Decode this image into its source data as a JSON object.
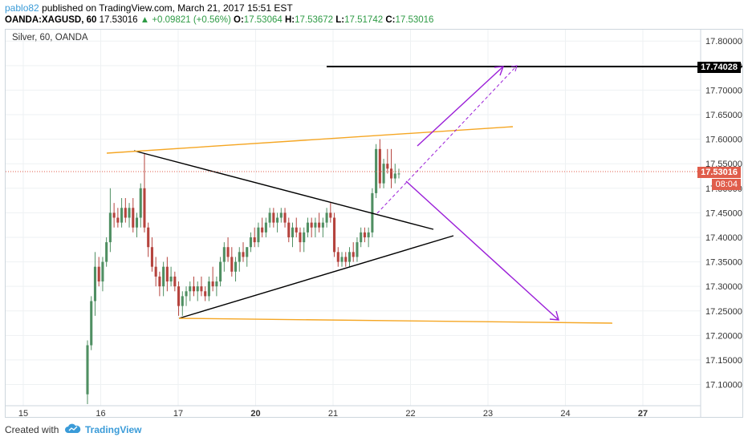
{
  "header": {
    "author": "pablo82",
    "published_text": "published on TradingView.com, March 21, 2017 15:51 EST",
    "symbol": "OANDA:XAGUSD, 60",
    "last": "17.53016",
    "change": "▲ +0.09821 (+0.56%)",
    "o_label": "O:",
    "o_value": "17.53064",
    "h_label": "H:",
    "h_value": "17.53672",
    "l_label": "L:",
    "l_value": "17.51742",
    "c_label": "C:",
    "c_value": "17.53016"
  },
  "chart": {
    "label": "Silver, 60, OANDA",
    "resistance_tag": "17.74028",
    "last_tag": "17.53016",
    "time_tag": "08:04"
  },
  "footer": {
    "created_with": "Created with",
    "brand": "TradingView"
  },
  "colors": {
    "bull": "#4f8f62",
    "bear": "#b5433d",
    "orange_line": "#f5a623",
    "purple_arrow": "#9b1fd8",
    "resistance": "#000000",
    "last_price": "#e05d4b"
  },
  "chart_data": {
    "type": "candlestick",
    "symbol": "OANDA:XAGUSD",
    "interval": "60",
    "x_ticks": [
      "15",
      "16",
      "17",
      "20",
      "21",
      "22",
      "23",
      "24",
      "27"
    ],
    "y_ticks": [
      "17.10000",
      "17.15000",
      "17.20000",
      "17.25000",
      "17.30000",
      "17.35000",
      "17.40000",
      "17.45000",
      "17.50000",
      "17.55000",
      "17.60000",
      "17.65000",
      "17.70000",
      "17.75000",
      "17.80000"
    ],
    "ylim": [
      17.06,
      17.82
    ],
    "levels": {
      "resistance": 17.74028,
      "last": 17.53016
    },
    "candles": [
      {
        "o": 17.08,
        "h": 17.19,
        "l": 17.06,
        "c": 17.18
      },
      {
        "o": 17.18,
        "h": 17.28,
        "l": 17.17,
        "c": 17.27
      },
      {
        "o": 17.27,
        "h": 17.37,
        "l": 17.24,
        "c": 17.34
      },
      {
        "o": 17.34,
        "h": 17.36,
        "l": 17.3,
        "c": 17.31
      },
      {
        "o": 17.31,
        "h": 17.36,
        "l": 17.29,
        "c": 17.35
      },
      {
        "o": 17.35,
        "h": 17.4,
        "l": 17.34,
        "c": 17.39
      },
      {
        "o": 17.39,
        "h": 17.5,
        "l": 17.37,
        "c": 17.45
      },
      {
        "o": 17.45,
        "h": 17.47,
        "l": 17.42,
        "c": 17.44
      },
      {
        "o": 17.44,
        "h": 17.46,
        "l": 17.42,
        "c": 17.43
      },
      {
        "o": 17.43,
        "h": 17.48,
        "l": 17.42,
        "c": 17.46
      },
      {
        "o": 17.46,
        "h": 17.48,
        "l": 17.43,
        "c": 17.44
      },
      {
        "o": 17.44,
        "h": 17.47,
        "l": 17.42,
        "c": 17.46
      },
      {
        "o": 17.46,
        "h": 17.48,
        "l": 17.41,
        "c": 17.42
      },
      {
        "o": 17.42,
        "h": 17.45,
        "l": 17.4,
        "c": 17.44
      },
      {
        "o": 17.44,
        "h": 17.51,
        "l": 17.42,
        "c": 17.5
      },
      {
        "o": 17.5,
        "h": 17.57,
        "l": 17.41,
        "c": 17.42
      },
      {
        "o": 17.42,
        "h": 17.43,
        "l": 17.36,
        "c": 17.38
      },
      {
        "o": 17.38,
        "h": 17.4,
        "l": 17.33,
        "c": 17.34
      },
      {
        "o": 17.34,
        "h": 17.36,
        "l": 17.3,
        "c": 17.32
      },
      {
        "o": 17.32,
        "h": 17.33,
        "l": 17.28,
        "c": 17.3
      },
      {
        "o": 17.3,
        "h": 17.35,
        "l": 17.28,
        "c": 17.34
      },
      {
        "o": 17.34,
        "h": 17.36,
        "l": 17.29,
        "c": 17.31
      },
      {
        "o": 17.31,
        "h": 17.34,
        "l": 17.3,
        "c": 17.32
      },
      {
        "o": 17.32,
        "h": 17.33,
        "l": 17.29,
        "c": 17.3
      },
      {
        "o": 17.3,
        "h": 17.31,
        "l": 17.24,
        "c": 17.26
      },
      {
        "o": 17.26,
        "h": 17.29,
        "l": 17.24,
        "c": 17.28
      },
      {
        "o": 17.28,
        "h": 17.3,
        "l": 17.26,
        "c": 17.29
      },
      {
        "o": 17.29,
        "h": 17.31,
        "l": 17.27,
        "c": 17.3
      },
      {
        "o": 17.3,
        "h": 17.32,
        "l": 17.28,
        "c": 17.29
      },
      {
        "o": 17.29,
        "h": 17.31,
        "l": 17.27,
        "c": 17.3
      },
      {
        "o": 17.3,
        "h": 17.32,
        "l": 17.28,
        "c": 17.29
      },
      {
        "o": 17.29,
        "h": 17.3,
        "l": 17.27,
        "c": 17.28
      },
      {
        "o": 17.28,
        "h": 17.32,
        "l": 17.27,
        "c": 17.31
      },
      {
        "o": 17.31,
        "h": 17.34,
        "l": 17.29,
        "c": 17.3
      },
      {
        "o": 17.3,
        "h": 17.32,
        "l": 17.28,
        "c": 17.31
      },
      {
        "o": 17.31,
        "h": 17.36,
        "l": 17.3,
        "c": 17.35
      },
      {
        "o": 17.35,
        "h": 17.39,
        "l": 17.33,
        "c": 17.38
      },
      {
        "o": 17.38,
        "h": 17.4,
        "l": 17.35,
        "c": 17.36
      },
      {
        "o": 17.36,
        "h": 17.38,
        "l": 17.32,
        "c": 17.33
      },
      {
        "o": 17.33,
        "h": 17.36,
        "l": 17.31,
        "c": 17.35
      },
      {
        "o": 17.35,
        "h": 17.38,
        "l": 17.33,
        "c": 17.37
      },
      {
        "o": 17.37,
        "h": 17.39,
        "l": 17.35,
        "c": 17.36
      },
      {
        "o": 17.36,
        "h": 17.38,
        "l": 17.34,
        "c": 17.38
      },
      {
        "o": 17.38,
        "h": 17.41,
        "l": 17.37,
        "c": 17.4
      },
      {
        "o": 17.4,
        "h": 17.42,
        "l": 17.38,
        "c": 17.39
      },
      {
        "o": 17.39,
        "h": 17.43,
        "l": 17.38,
        "c": 17.42
      },
      {
        "o": 17.42,
        "h": 17.44,
        "l": 17.4,
        "c": 17.41
      },
      {
        "o": 17.41,
        "h": 17.44,
        "l": 17.4,
        "c": 17.43
      },
      {
        "o": 17.43,
        "h": 17.46,
        "l": 17.42,
        "c": 17.45
      },
      {
        "o": 17.45,
        "h": 17.46,
        "l": 17.42,
        "c": 17.43
      },
      {
        "o": 17.43,
        "h": 17.45,
        "l": 17.41,
        "c": 17.44
      },
      {
        "o": 17.44,
        "h": 17.46,
        "l": 17.43,
        "c": 17.45
      },
      {
        "o": 17.45,
        "h": 17.46,
        "l": 17.42,
        "c": 17.43
      },
      {
        "o": 17.43,
        "h": 17.44,
        "l": 17.39,
        "c": 17.4
      },
      {
        "o": 17.4,
        "h": 17.43,
        "l": 17.38,
        "c": 17.42
      },
      {
        "o": 17.42,
        "h": 17.44,
        "l": 17.4,
        "c": 17.41
      },
      {
        "o": 17.41,
        "h": 17.42,
        "l": 17.37,
        "c": 17.39
      },
      {
        "o": 17.39,
        "h": 17.42,
        "l": 17.37,
        "c": 17.41
      },
      {
        "o": 17.41,
        "h": 17.44,
        "l": 17.4,
        "c": 17.43
      },
      {
        "o": 17.43,
        "h": 17.44,
        "l": 17.4,
        "c": 17.42
      },
      {
        "o": 17.42,
        "h": 17.44,
        "l": 17.4,
        "c": 17.43
      },
      {
        "o": 17.43,
        "h": 17.45,
        "l": 17.41,
        "c": 17.42
      },
      {
        "o": 17.42,
        "h": 17.44,
        "l": 17.4,
        "c": 17.43
      },
      {
        "o": 17.43,
        "h": 17.46,
        "l": 17.42,
        "c": 17.45
      },
      {
        "o": 17.45,
        "h": 17.47,
        "l": 17.43,
        "c": 17.44
      },
      {
        "o": 17.44,
        "h": 17.45,
        "l": 17.36,
        "c": 17.37
      },
      {
        "o": 17.37,
        "h": 17.38,
        "l": 17.34,
        "c": 17.35
      },
      {
        "o": 17.35,
        "h": 17.37,
        "l": 17.34,
        "c": 17.36
      },
      {
        "o": 17.36,
        "h": 17.37,
        "l": 17.34,
        "c": 17.35
      },
      {
        "o": 17.35,
        "h": 17.38,
        "l": 17.34,
        "c": 17.37
      },
      {
        "o": 17.37,
        "h": 17.39,
        "l": 17.35,
        "c": 17.36
      },
      {
        "o": 17.36,
        "h": 17.4,
        "l": 17.35,
        "c": 17.39
      },
      {
        "o": 17.39,
        "h": 17.42,
        "l": 17.38,
        "c": 17.41
      },
      {
        "o": 17.41,
        "h": 17.42,
        "l": 17.39,
        "c": 17.4
      },
      {
        "o": 17.4,
        "h": 17.42,
        "l": 17.38,
        "c": 17.41
      },
      {
        "o": 17.41,
        "h": 17.5,
        "l": 17.4,
        "c": 17.49
      },
      {
        "o": 17.49,
        "h": 17.59,
        "l": 17.48,
        "c": 17.58
      },
      {
        "o": 17.58,
        "h": 17.6,
        "l": 17.5,
        "c": 17.51
      },
      {
        "o": 17.51,
        "h": 17.56,
        "l": 17.5,
        "c": 17.55
      },
      {
        "o": 17.55,
        "h": 17.58,
        "l": 17.53,
        "c": 17.54
      },
      {
        "o": 17.54,
        "h": 17.58,
        "l": 17.5,
        "c": 17.52
      },
      {
        "o": 17.52,
        "h": 17.55,
        "l": 17.51,
        "c": 17.53
      },
      {
        "o": 17.53,
        "h": 17.54,
        "l": 17.52,
        "c": 17.53
      }
    ]
  }
}
